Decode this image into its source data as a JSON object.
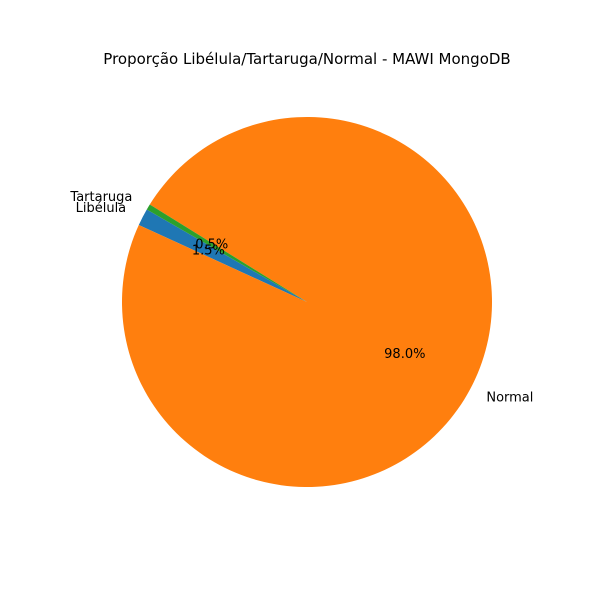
{
  "chart_data": {
    "type": "pie",
    "title": "Proporção Libélula/Tartaruga/Normal - MAWI MongoDB",
    "start_angle_deg": 150,
    "direction": "counterclockwise",
    "slices": [
      {
        "label": "Libélula",
        "value": 1.5,
        "pct_label": "1.5%",
        "color": "#1f77b4"
      },
      {
        "label": "Normal",
        "value": 98.0,
        "pct_label": "98.0%",
        "color": "#ff7f0e"
      },
      {
        "label": "Tartaruga",
        "value": 0.5,
        "pct_label": "0.5%",
        "color": "#2ca02c"
      }
    ]
  }
}
